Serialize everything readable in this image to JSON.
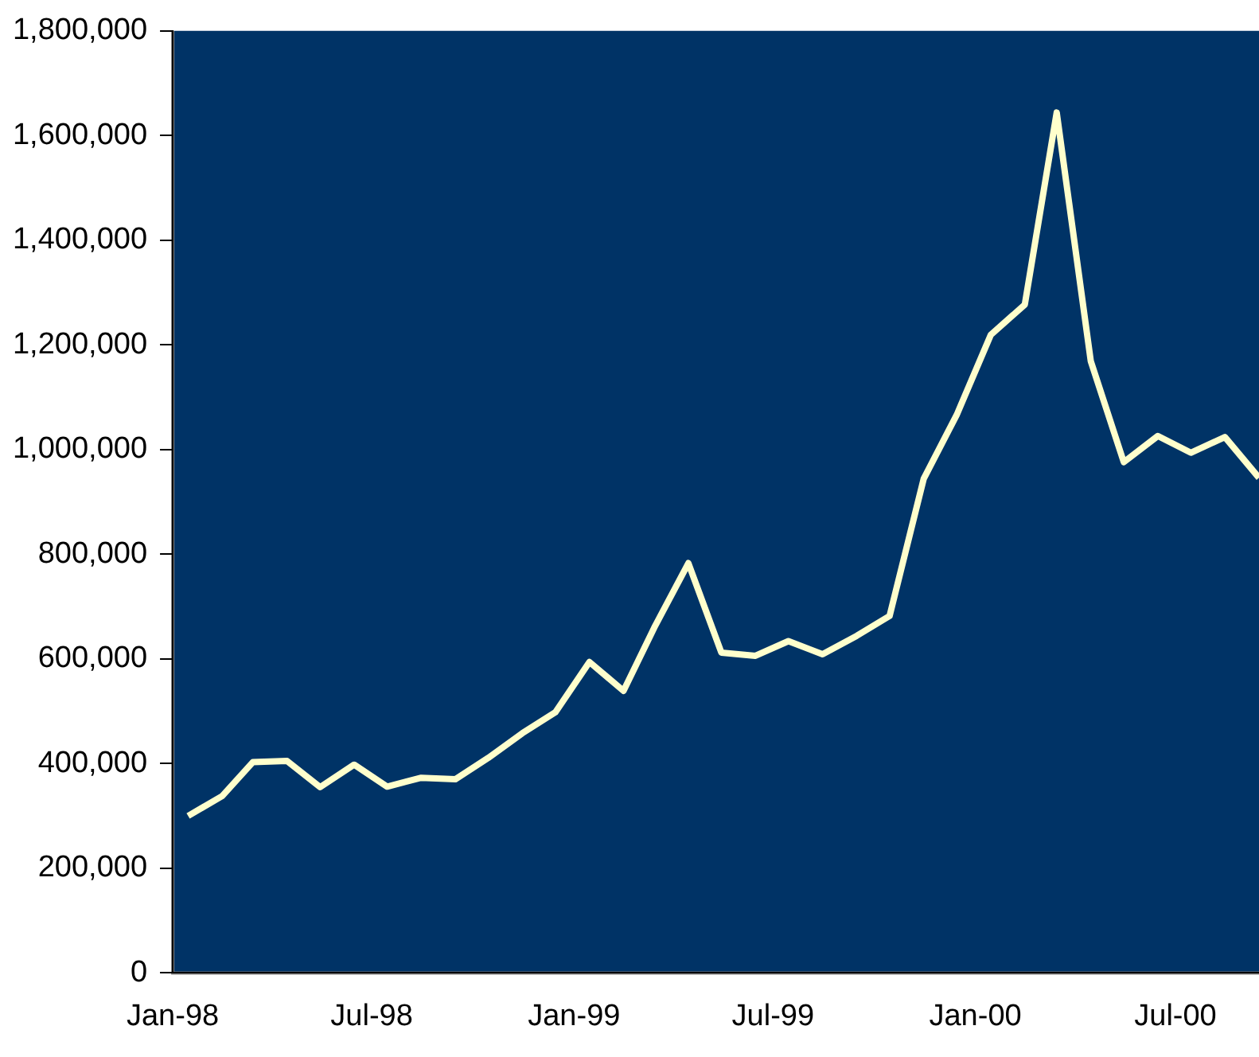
{
  "chart_data": {
    "type": "line",
    "x": [
      "1998-01-15",
      "1998-02-15",
      "1998-03-15",
      "1998-04-15",
      "1998-05-15",
      "1998-06-15",
      "1998-07-15",
      "1998-08-15",
      "1998-09-15",
      "1998-10-15",
      "1998-11-15",
      "1998-12-15",
      "1999-01-15",
      "1999-02-15",
      "1999-03-15",
      "1999-04-15",
      "1999-05-15",
      "1999-06-15",
      "1999-07-15",
      "1999-08-15",
      "1999-09-15",
      "1999-10-15",
      "1999-11-15",
      "1999-12-15",
      "2000-01-15",
      "2000-02-15",
      "2000-03-15",
      "2000-04-15",
      "2000-05-15",
      "2000-06-15",
      "2000-07-15",
      "2000-08-15",
      "2000-09-15"
    ],
    "series": [
      {
        "color": "#ffffcc",
        "values": [
          300000,
          338000,
          403000,
          405000,
          355000,
          398000,
          356000,
          373000,
          370000,
          411000,
          458000,
          498000,
          594000,
          539000,
          660000,
          783000,
          612000,
          606000,
          634000,
          609000,
          644000,
          682000,
          944000,
          1066000,
          1219000,
          1277000,
          1644000,
          1169000,
          976000,
          1026000,
          994000,
          1024000,
          946000
        ]
      }
    ],
    "xlim": [
      "1998-01-01",
      "2000-09-15"
    ],
    "xticks": [
      {
        "value": "1998-01",
        "label": "Jan-98"
      },
      {
        "value": "1998-07",
        "label": "Jul-98"
      },
      {
        "value": "1999-01",
        "label": "Jan-99"
      },
      {
        "value": "1999-07",
        "label": "Jul-99"
      },
      {
        "value": "2000-01",
        "label": "Jan-00"
      },
      {
        "value": "2000-07",
        "label": "Jul-00"
      }
    ],
    "ylim": [
      0,
      1800000
    ],
    "yticks": [
      {
        "value": 0,
        "label": "0"
      },
      {
        "value": 200000,
        "label": "200,000"
      },
      {
        "value": 400000,
        "label": "400,000"
      },
      {
        "value": 600000,
        "label": "600,000"
      },
      {
        "value": 800000,
        "label": "800,000"
      },
      {
        "value": 1000000,
        "label": "1,000,000"
      },
      {
        "value": 1200000,
        "label": "1,200,000"
      },
      {
        "value": 1400000,
        "label": "1,400,000"
      },
      {
        "value": 1600000,
        "label": "1,600,000"
      },
      {
        "value": 1800000,
        "label": "1,800,000"
      }
    ],
    "grid": false,
    "legend": false,
    "marker": "none",
    "line_style": "solid"
  }
}
